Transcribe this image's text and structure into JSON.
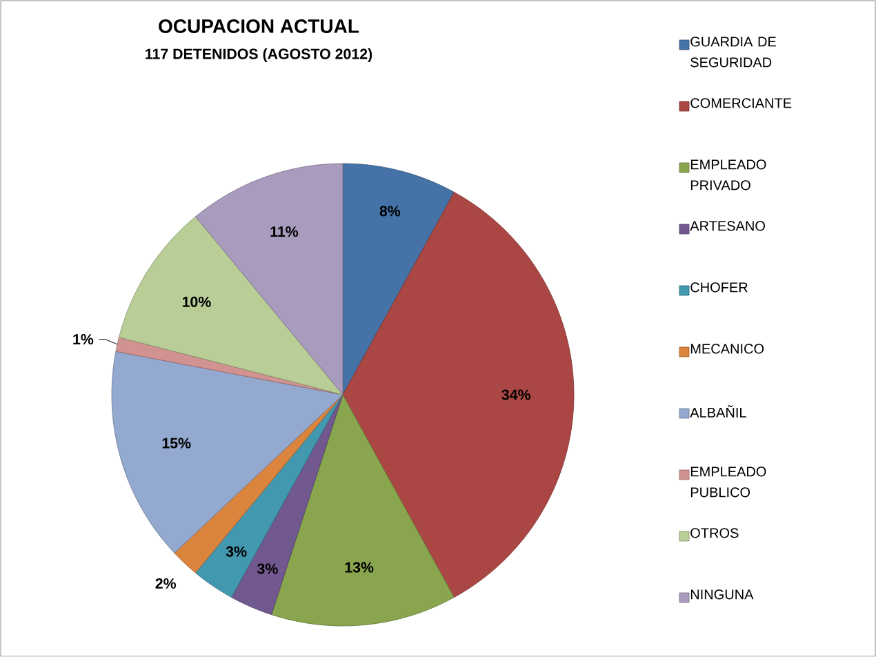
{
  "chart_data": {
    "type": "pie",
    "title": "OCUPACION ACTUAL",
    "subtitle": "117 DETENIDOS (AGOSTO 2012)",
    "categories": [
      "GUARDIA DE SEGURIDAD",
      "COMERCIANTE",
      "EMPLEADO PRIVADO",
      "ARTESANO",
      "CHOFER",
      "MECANICO",
      "ALBAÑIL",
      "EMPLEADO PUBLICO",
      "OTROS",
      "NINGUNA"
    ],
    "values": [
      8,
      34,
      13,
      3,
      3,
      2,
      15,
      1,
      10,
      11
    ],
    "colors": [
      "#4572a7",
      "#aa4643",
      "#89a54e",
      "#71588f",
      "#4198af",
      "#db843d",
      "#93a9cf",
      "#d19392",
      "#b9cd96",
      "#a99bbd"
    ],
    "value_labels": [
      "8%",
      "34%",
      "13%",
      "3%",
      "3%",
      "2%",
      "15%",
      "1%",
      "10%",
      "11%"
    ],
    "legend": "right"
  }
}
